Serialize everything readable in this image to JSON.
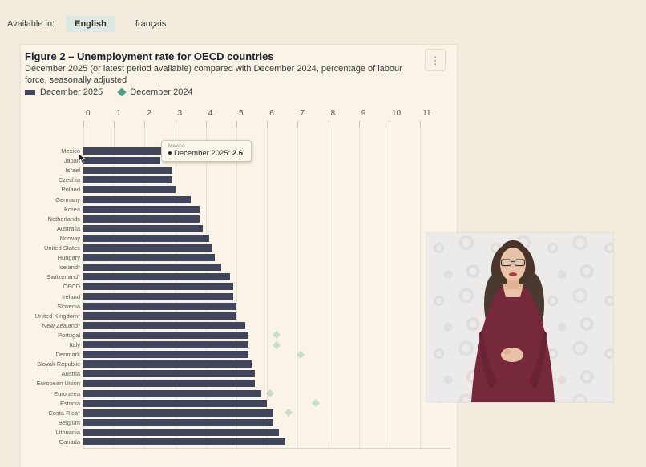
{
  "language_bar": {
    "label": "Available in:",
    "options": [
      {
        "label": "English",
        "active": true
      },
      {
        "label": "français",
        "active": false
      }
    ]
  },
  "figure": {
    "title": "Figure 2 – Unemployment rate for OECD countries",
    "subtitle": "December 2025 (or latest period available) compared with December 2024, percentage of labour force, seasonally adjusted",
    "legend": [
      {
        "label": "December 2025",
        "marker": "bar-square",
        "color": "#3f455b"
      },
      {
        "label": "December 2024",
        "marker": "diamond",
        "color": "#4ba085"
      }
    ],
    "menu_icon": "kebab-menu-icon"
  },
  "tooltip": {
    "country": "Mexico",
    "series_label": "December 2025:",
    "value": "2.6"
  },
  "chart_data": {
    "type": "bar",
    "orientation": "horizontal",
    "title": "Figure 2 – Unemployment rate for OECD countries",
    "xlim": [
      0,
      12
    ],
    "x_ticks": [
      0,
      1,
      2,
      3,
      4,
      5,
      6,
      7,
      8,
      9,
      10,
      11
    ],
    "grid": true,
    "legend_position": "top",
    "categories": [
      "Mexico",
      "Japan",
      "Israel",
      "Czechia",
      "Poland",
      "Germany",
      "Korea",
      "Netherlands",
      "Australia",
      "Norway",
      "United States",
      "Hungary",
      "Iceland*",
      "Switzerland*",
      "OECD",
      "Ireland",
      "Slovenia",
      "United Kingdom*",
      "New Zealand*",
      "Portugal",
      "Italy",
      "Denmark",
      "Slovak Republic",
      "Austria",
      "European Union",
      "Euro area",
      "Estonia",
      "Costa Rica*",
      "Belgium",
      "Lithuania",
      "Canada"
    ],
    "series": [
      {
        "name": "December 2025",
        "values": [
          2.6,
          2.5,
          2.9,
          2.9,
          3.0,
          3.5,
          3.8,
          3.8,
          3.9,
          4.1,
          4.2,
          4.3,
          4.5,
          4.8,
          4.9,
          4.9,
          5.0,
          5.0,
          5.3,
          5.4,
          5.4,
          5.4,
          5.5,
          5.6,
          5.6,
          5.8,
          6.0,
          6.2,
          6.2,
          6.4,
          6.6
        ]
      },
      {
        "name": "December 2024",
        "values": [
          null,
          null,
          null,
          null,
          null,
          null,
          null,
          null,
          null,
          null,
          null,
          null,
          null,
          null,
          null,
          null,
          null,
          null,
          null,
          6.3,
          6.3,
          7.1,
          null,
          null,
          null,
          6.1,
          7.6,
          6.7,
          null,
          null,
          null
        ]
      }
    ]
  },
  "video_overlay": {
    "name": "sign-language-interpreter-video",
    "description": "woman interpreter, burgundy top, damask background"
  },
  "colors": {
    "bar": "#3f455b",
    "marker": "#4ba085",
    "marker_faded": "rgba(75,160,133,0.28)",
    "page_bg": "#f2ecdf",
    "card_bg": "#f9f4e7",
    "grid": "#e7e1ce",
    "chip_bg": "#dde8e3",
    "dress": "#76293a",
    "skin": "#e9c3a8",
    "hair": "#483428"
  }
}
